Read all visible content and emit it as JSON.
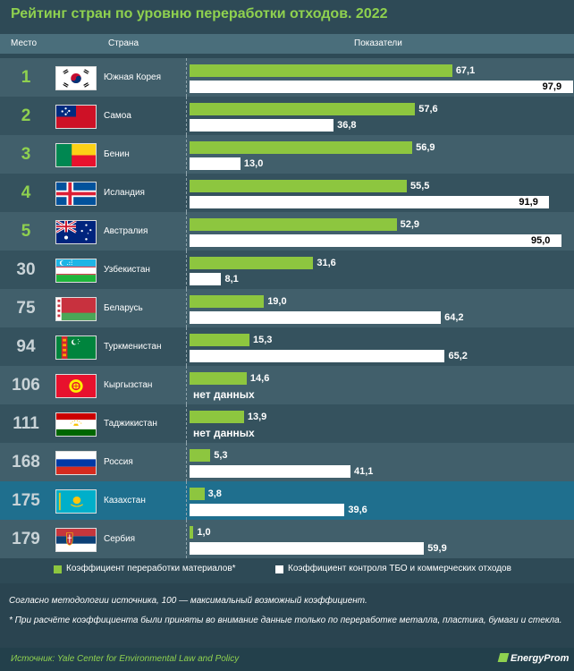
{
  "title": "Рейтинг стран по уровню переработки отходов. 2022",
  "header": {
    "rank": "Место",
    "country": "Страна",
    "indicators": "Показатели"
  },
  "legend": {
    "green": "Коэффициент переработки материалов*",
    "white": "Коэффициент контроля ТБО и коммерческих отходов"
  },
  "notes": {
    "line1": "Согласно методологии источника, 100 — максимальный возможный коэффициент.",
    "line2": "* При расчёте коэффициента были приняты во внимание данные только по переработке металла, пластика, бумаги и стекла."
  },
  "footer": {
    "source": "Источник: Yale Center for Environmental Law and Policy",
    "logo": "EnergyProm"
  },
  "colors": {
    "green": "#8dc63f",
    "white": "#ffffff",
    "title": "#8fd14f",
    "highlight": "#1f6f8e"
  },
  "nodata_label": "нет данных",
  "chart_data": {
    "type": "bar",
    "title": "Рейтинг стран по уровню переработки отходов. 2022",
    "legend_position": "bottom",
    "series": [
      {
        "name": "Коэффициент переработки материалов*",
        "color": "#8dc63f"
      },
      {
        "name": "Коэффициент контроля ТБО и коммерческих отходов",
        "color": "#ffffff"
      }
    ],
    "rows": [
      {
        "rank": "1",
        "country": "Южная Корея",
        "flag": "south-korea",
        "recycling": 67.1,
        "recycling_label": "67,1",
        "control": 97.9,
        "control_label": "97,9"
      },
      {
        "rank": "2",
        "country": "Самоа",
        "flag": "samoa",
        "recycling": 57.6,
        "recycling_label": "57,6",
        "control": 36.8,
        "control_label": "36,8"
      },
      {
        "rank": "3",
        "country": "Бенин",
        "flag": "benin",
        "recycling": 56.9,
        "recycling_label": "56,9",
        "control": 13.0,
        "control_label": "13,0"
      },
      {
        "rank": "4",
        "country": "Исландия",
        "flag": "iceland",
        "recycling": 55.5,
        "recycling_label": "55,5",
        "control": 91.9,
        "control_label": "91,9"
      },
      {
        "rank": "5",
        "country": "Австралия",
        "flag": "australia",
        "recycling": 52.9,
        "recycling_label": "52,9",
        "control": 95.0,
        "control_label": "95,0"
      },
      {
        "rank": "30",
        "country": "Узбекистан",
        "flag": "uzbekistan",
        "recycling": 31.6,
        "recycling_label": "31,6",
        "control": 8.1,
        "control_label": "8,1"
      },
      {
        "rank": "75",
        "country": "Беларусь",
        "flag": "belarus",
        "recycling": 19.0,
        "recycling_label": "19,0",
        "control": 64.2,
        "control_label": "64,2"
      },
      {
        "rank": "94",
        "country": "Туркменистан",
        "flag": "turkmenistan",
        "recycling": 15.3,
        "recycling_label": "15,3",
        "control": 65.2,
        "control_label": "65,2"
      },
      {
        "rank": "106",
        "country": "Кыргызстан",
        "flag": "kyrgyzstan",
        "recycling": 14.6,
        "recycling_label": "14,6",
        "control": null,
        "control_label": null
      },
      {
        "rank": "111",
        "country": "Таджикистан",
        "flag": "tajikistan",
        "recycling": 13.9,
        "recycling_label": "13,9",
        "control": null,
        "control_label": null
      },
      {
        "rank": "168",
        "country": "Россия",
        "flag": "russia",
        "recycling": 5.3,
        "recycling_label": "5,3",
        "control": 41.1,
        "control_label": "41,1"
      },
      {
        "rank": "175",
        "country": "Казахстан",
        "flag": "kazakhstan",
        "recycling": 3.8,
        "recycling_label": "3,8",
        "control": 39.6,
        "control_label": "39,6",
        "highlight": true
      },
      {
        "rank": "179",
        "country": "Сербия",
        "flag": "serbia",
        "recycling": 1.0,
        "recycling_label": "1,0",
        "control": 59.9,
        "control_label": "59,9"
      }
    ]
  }
}
